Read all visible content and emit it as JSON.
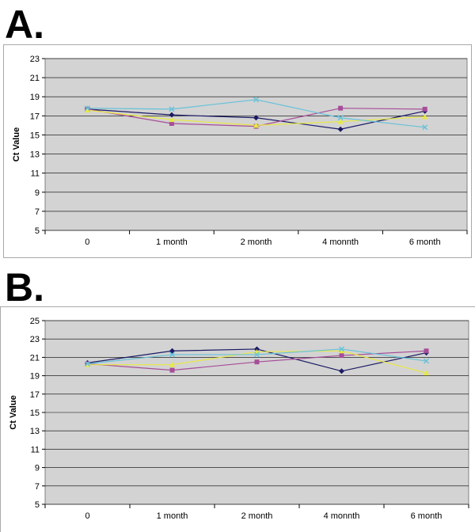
{
  "panels": [
    {
      "letter": "A."
    },
    {
      "letter": "B."
    }
  ],
  "chart_data": [
    {
      "type": "line",
      "panel": "A.",
      "categories": [
        "0",
        "1 month",
        "2 month",
        "4 monnth",
        "6 month"
      ],
      "ylabel": "Ct Value",
      "xlabel": "",
      "ylim": [
        5,
        23
      ],
      "yticks": [
        5,
        7,
        9,
        11,
        13,
        15,
        17,
        19,
        21,
        23
      ],
      "grid": true,
      "legend": "none",
      "series": [
        {
          "color": "#1a1a66",
          "marker": "diamond",
          "values": [
            17.7,
            17.1,
            16.8,
            15.6,
            17.5
          ]
        },
        {
          "color": "#a64d99",
          "marker": "square",
          "values": [
            17.7,
            16.2,
            15.9,
            17.8,
            17.7
          ]
        },
        {
          "color": "#e8e845",
          "marker": "triangle",
          "values": [
            17.6,
            16.6,
            16.0,
            16.4,
            16.9
          ]
        },
        {
          "color": "#66c2d9",
          "marker": "x",
          "values": [
            17.8,
            17.7,
            18.7,
            16.8,
            15.8
          ]
        }
      ]
    },
    {
      "type": "line",
      "panel": "B.",
      "categories": [
        "0",
        "1 month",
        "2 month",
        "4 monnth",
        "6 month"
      ],
      "ylabel": "Ct Value",
      "xlabel": "",
      "ylim": [
        5,
        25
      ],
      "yticks": [
        5,
        7,
        9,
        11,
        13,
        15,
        17,
        19,
        21,
        23,
        25
      ],
      "grid": true,
      "legend": "none",
      "series": [
        {
          "color": "#1a1a66",
          "marker": "diamond",
          "values": [
            20.4,
            21.7,
            21.9,
            19.5,
            21.5
          ]
        },
        {
          "color": "#a64d99",
          "marker": "square",
          "values": [
            20.3,
            19.6,
            20.5,
            21.2,
            21.7
          ]
        },
        {
          "color": "#e8e845",
          "marker": "triangle",
          "values": [
            20.2,
            20.2,
            21.6,
            21.7,
            19.3
          ]
        },
        {
          "color": "#66c2d9",
          "marker": "x",
          "values": [
            20.3,
            21.3,
            21.3,
            21.9,
            20.6
          ]
        }
      ]
    }
  ]
}
